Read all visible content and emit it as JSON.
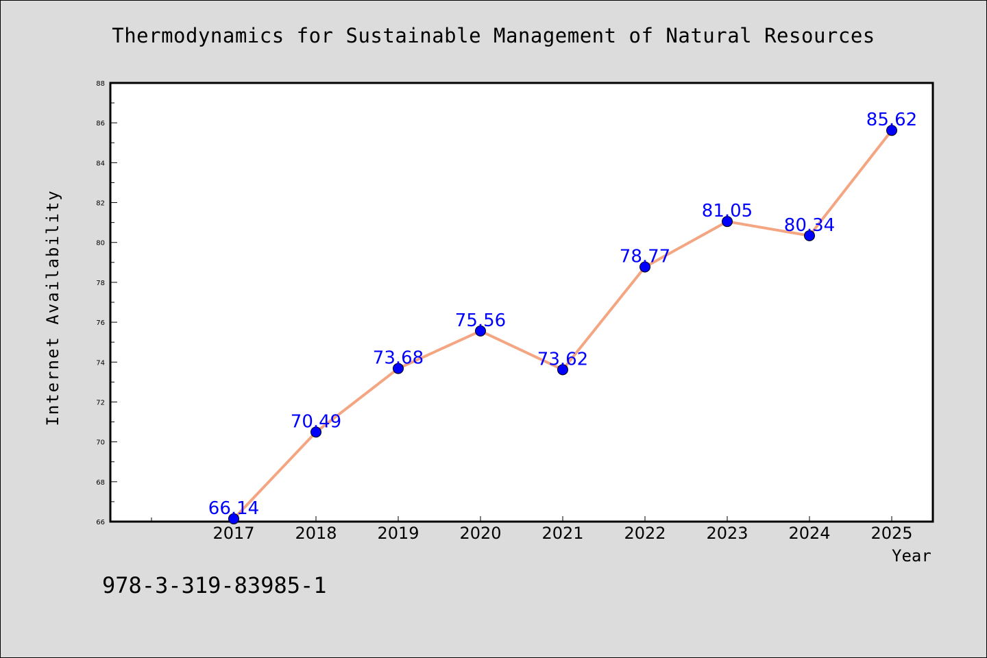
{
  "chart_data": {
    "type": "line",
    "title": "Thermodynamics for Sustainable Management of Natural Resources",
    "xlabel": "Year",
    "ylabel": "Internet Availability",
    "categories": [
      "2017",
      "2018",
      "2019",
      "2020",
      "2021",
      "2022",
      "2023",
      "2024",
      "2025"
    ],
    "series": [
      {
        "values": [
          66.14,
          70.49,
          73.68,
          75.56,
          73.62,
          78.77,
          81.05,
          80.34,
          85.62
        ],
        "labels": [
          "66.14",
          "70.49",
          "73.68",
          "75.56",
          "73.62",
          "78.77",
          "81.05",
          "80.34",
          "85.62"
        ],
        "line_color": "#f4a582",
        "marker_color": "#0000ff"
      }
    ],
    "ylim": [
      66,
      88
    ],
    "yticks": [
      "66",
      "68",
      "70",
      "72",
      "74",
      "76",
      "78",
      "80",
      "82",
      "84",
      "86",
      "88"
    ],
    "grid": false,
    "legend": "none"
  },
  "annotation": "978-3-319-83985-1"
}
